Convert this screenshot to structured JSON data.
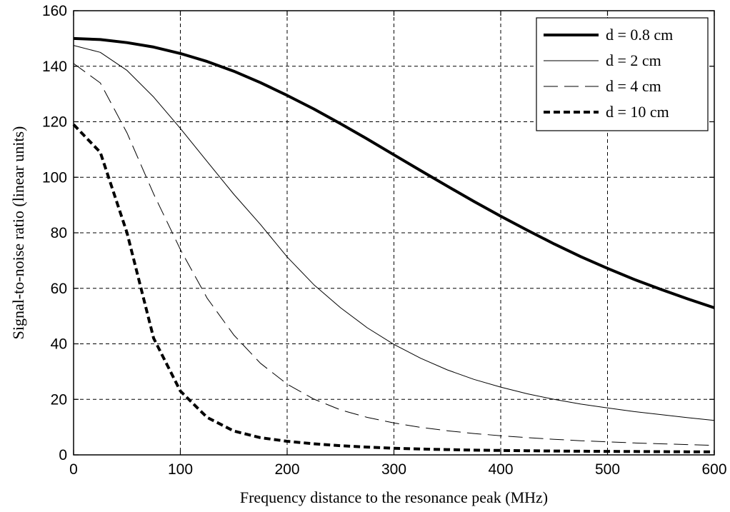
{
  "chart_data": {
    "type": "line",
    "xlabel": "Frequency distance to the resonance peak (MHz)",
    "ylabel": "Signal-to-noise ratio (linear units)",
    "xlim": [
      0,
      600
    ],
    "ylim": [
      0,
      160
    ],
    "xticks": [
      0,
      100,
      200,
      300,
      400,
      500,
      600
    ],
    "yticks": [
      0,
      20,
      40,
      60,
      80,
      100,
      120,
      140,
      160
    ],
    "grid": true,
    "legend_position": "top-right",
    "x": [
      0,
      25,
      50,
      75,
      100,
      125,
      150,
      175,
      200,
      225,
      250,
      275,
      300,
      325,
      350,
      375,
      400,
      425,
      450,
      475,
      500,
      525,
      550,
      575,
      600
    ],
    "series": [
      {
        "name": "d = 0.8 cm",
        "style": "solid-thick",
        "values": [
          150,
          149.6,
          148.5,
          146.9,
          144.6,
          141.7,
          138.2,
          134.1,
          129.5,
          124.6,
          119.3,
          113.8,
          108.1,
          102.4,
          96.8,
          91.3,
          86.0,
          80.9,
          76.0,
          71.4,
          67.2,
          63.2,
          59.6,
          56.2,
          53.0
        ]
      },
      {
        "name": "d = 2 cm",
        "style": "solid-thin",
        "values": [
          147.5,
          145.0,
          138.5,
          128.9,
          117.6,
          105.7,
          93.9,
          83.0,
          71.3,
          61.3,
          53.0,
          45.8,
          39.8,
          34.8,
          30.6,
          27.2,
          24.4,
          22.0,
          20.0,
          18.3,
          16.9,
          15.6,
          14.5,
          13.4,
          12.4
        ]
      },
      {
        "name": "d = 4 cm",
        "style": "dashed-thin",
        "values": [
          141,
          134,
          116,
          94,
          74,
          56.5,
          43.2,
          33.0,
          25.5,
          20.1,
          16.2,
          13.5,
          11.5,
          9.9,
          8.7,
          7.7,
          6.9,
          6.2,
          5.6,
          5.1,
          4.7,
          4.3,
          4.0,
          3.7,
          3.4
        ]
      },
      {
        "name": "d = 10 cm",
        "style": "dashed-thick",
        "values": [
          119,
          109,
          80,
          42,
          23,
          13.5,
          8.6,
          6.2,
          4.9,
          4.0,
          3.3,
          2.8,
          2.4,
          2.1,
          1.9,
          1.7,
          1.6,
          1.5,
          1.4,
          1.3,
          1.25,
          1.2,
          1.15,
          1.1,
          1.1
        ]
      }
    ]
  }
}
